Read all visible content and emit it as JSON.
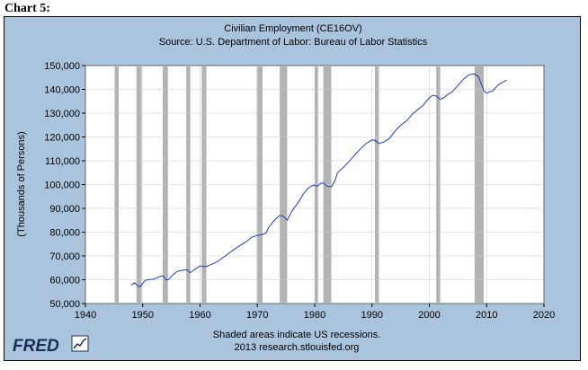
{
  "page": {
    "heading": "Chart 5:"
  },
  "chart_data": {
    "type": "line",
    "title": "Civilian Employment (CE16OV)",
    "subtitle": "Source: U.S. Department of Labor: Bureau of Labor Statistics",
    "ylabel": "(Thousands of Persons)",
    "xlabel": "",
    "xlim": [
      1940,
      2020
    ],
    "ylim": [
      50000,
      150000
    ],
    "x_ticks": [
      1940,
      1950,
      1960,
      1970,
      1980,
      1990,
      2000,
      2010,
      2020
    ],
    "y_ticks": [
      50000,
      60000,
      70000,
      80000,
      90000,
      100000,
      110000,
      120000,
      130000,
      140000,
      150000
    ],
    "x_tick_labels": [
      "1940",
      "1950",
      "1960",
      "1970",
      "1980",
      "1990",
      "2000",
      "2010",
      "2020"
    ],
    "y_tick_labels": [
      "50,000",
      "60,000",
      "70,000",
      "80,000",
      "90,000",
      "100,000",
      "110,000",
      "120,000",
      "130,000",
      "140,000",
      "150,000"
    ],
    "grid": true,
    "recessions": [
      [
        1945.1,
        1945.8
      ],
      [
        1948.9,
        1949.8
      ],
      [
        1953.5,
        1954.4
      ],
      [
        1957.6,
        1958.3
      ],
      [
        1960.3,
        1961.1
      ],
      [
        1969.9,
        1970.9
      ],
      [
        1973.9,
        1975.2
      ],
      [
        1980.0,
        1980.6
      ],
      [
        1981.5,
        1982.9
      ],
      [
        1990.5,
        1991.2
      ],
      [
        2001.2,
        2001.9
      ],
      [
        2007.9,
        2009.5
      ]
    ],
    "series": [
      {
        "color": "#1f3fb8",
        "points": [
          [
            1948.0,
            57800
          ],
          [
            1948.6,
            58700
          ],
          [
            1949.2,
            57200
          ],
          [
            1949.6,
            57000
          ],
          [
            1950.0,
            58600
          ],
          [
            1950.5,
            59800
          ],
          [
            1951.0,
            60000
          ],
          [
            1952.0,
            60300
          ],
          [
            1953.0,
            61400
          ],
          [
            1953.6,
            61600
          ],
          [
            1954.0,
            60000
          ],
          [
            1954.5,
            60000
          ],
          [
            1955.0,
            61500
          ],
          [
            1956.0,
            63500
          ],
          [
            1957.0,
            64000
          ],
          [
            1957.7,
            64200
          ],
          [
            1958.3,
            63000
          ],
          [
            1959.0,
            64200
          ],
          [
            1960.0,
            65800
          ],
          [
            1960.6,
            65500
          ],
          [
            1961.0,
            65500
          ],
          [
            1962.0,
            66500
          ],
          [
            1963.0,
            67600
          ],
          [
            1964.0,
            69300
          ],
          [
            1965.0,
            71100
          ],
          [
            1966.0,
            72900
          ],
          [
            1967.0,
            74400
          ],
          [
            1968.0,
            75900
          ],
          [
            1969.0,
            77900
          ],
          [
            1970.0,
            78600
          ],
          [
            1970.9,
            79000
          ],
          [
            1971.5,
            79600
          ],
          [
            1972.0,
            82100
          ],
          [
            1973.0,
            85100
          ],
          [
            1973.9,
            87000
          ],
          [
            1974.5,
            86800
          ],
          [
            1975.2,
            85000
          ],
          [
            1976.0,
            88800
          ],
          [
            1977.0,
            92000
          ],
          [
            1978.0,
            96000
          ],
          [
            1979.0,
            98800
          ],
          [
            1979.9,
            99800
          ],
          [
            1980.5,
            99300
          ],
          [
            1981.0,
            100500
          ],
          [
            1981.5,
            100700
          ],
          [
            1982.0,
            99500
          ],
          [
            1982.9,
            99000
          ],
          [
            1983.5,
            101500
          ],
          [
            1984.0,
            105000
          ],
          [
            1985.0,
            107200
          ],
          [
            1986.0,
            109700
          ],
          [
            1987.0,
            112500
          ],
          [
            1988.0,
            115000
          ],
          [
            1989.0,
            117300
          ],
          [
            1990.0,
            118800
          ],
          [
            1990.6,
            118500
          ],
          [
            1991.2,
            117200
          ],
          [
            1992.0,
            117800
          ],
          [
            1993.0,
            119300
          ],
          [
            1994.0,
            122500
          ],
          [
            1995.0,
            124900
          ],
          [
            1996.0,
            126700
          ],
          [
            1997.0,
            129500
          ],
          [
            1998.0,
            131500
          ],
          [
            1999.0,
            133500
          ],
          [
            2000.0,
            136500
          ],
          [
            2000.6,
            137500
          ],
          [
            2001.2,
            137200
          ],
          [
            2001.9,
            135800
          ],
          [
            2002.5,
            136400
          ],
          [
            2003.0,
            137500
          ],
          [
            2004.0,
            139000
          ],
          [
            2005.0,
            141700
          ],
          [
            2006.0,
            144400
          ],
          [
            2007.0,
            146200
          ],
          [
            2007.9,
            146500
          ],
          [
            2008.6,
            145200
          ],
          [
            2009.5,
            139500
          ],
          [
            2010.0,
            138300
          ],
          [
            2010.5,
            139000
          ],
          [
            2011.0,
            139200
          ],
          [
            2012.0,
            141800
          ],
          [
            2012.6,
            142700
          ],
          [
            2013.5,
            143900
          ]
        ]
      }
    ],
    "footer": {
      "note": "Shaded areas indicate US recessions.",
      "source": "2013 research.stlouisfed.org",
      "logo": "FRED"
    }
  }
}
